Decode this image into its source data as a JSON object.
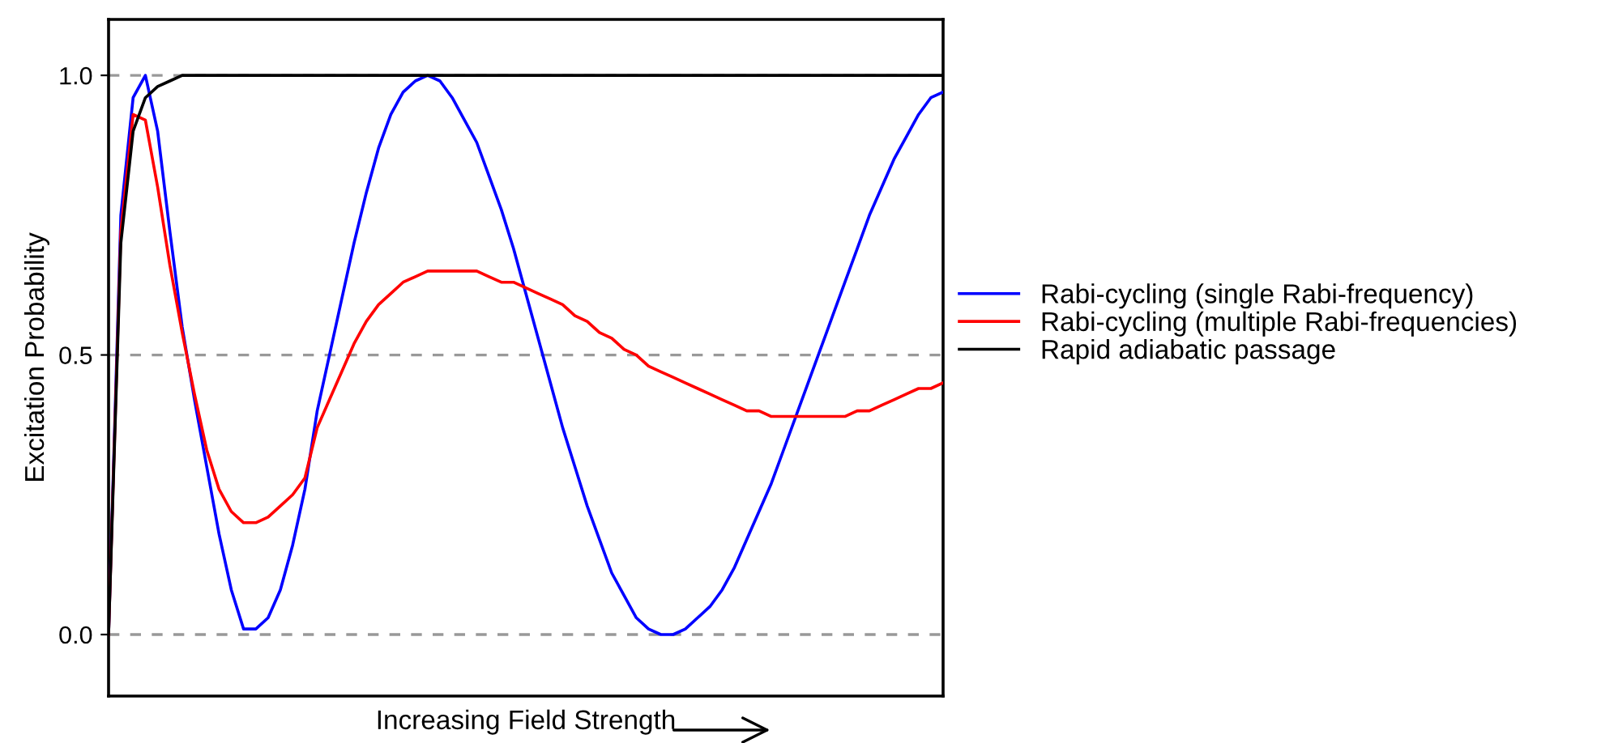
{
  "chart_data": {
    "type": "line",
    "xlabel": "Increasing Field Strength",
    "ylabel": "Excitation Probability",
    "categories": [
      null,
      null,
      null,
      null,
      null,
      null,
      null,
      null,
      null,
      null,
      null,
      null,
      null,
      null,
      null,
      null,
      null,
      null,
      null,
      null,
      null,
      null,
      null,
      null,
      null,
      null,
      null,
      null,
      null,
      null,
      null,
      null,
      null,
      null,
      null,
      null,
      null,
      null,
      null,
      null,
      null,
      null,
      null,
      null,
      null,
      null,
      null,
      null,
      null,
      null,
      null,
      null,
      null,
      null,
      null,
      null,
      null,
      null,
      null,
      null,
      null,
      null,
      null,
      null,
      null,
      null,
      null,
      null,
      null
    ],
    "series": [
      {
        "name": "Rabi-cycling (single Rabi-frequency)",
        "color": "#0000ff",
        "values": [
          0,
          0.75,
          0.96,
          1.0,
          0.9,
          0.72,
          0.55,
          0.42,
          0.3,
          0.18,
          0.08,
          0.01,
          0.01,
          0.03,
          0.08,
          0.16,
          0.26,
          0.4,
          0.5,
          0.6,
          0.7,
          0.79,
          0.87,
          0.93,
          0.97,
          0.99,
          1.0,
          0.99,
          0.96,
          0.92,
          0.88,
          0.82,
          0.76,
          0.69,
          0.61,
          0.53,
          0.45,
          0.37,
          0.3,
          0.23,
          0.17,
          0.11,
          0.07,
          0.03,
          0.01,
          0.0,
          0.0,
          0.01,
          0.03,
          0.05,
          0.08,
          0.12,
          0.17,
          0.22,
          0.27,
          0.33,
          0.39,
          0.45,
          0.51,
          0.57,
          0.63,
          0.69,
          0.75,
          0.8,
          0.85,
          0.89,
          0.93,
          0.96,
          0.97
        ]
      },
      {
        "name": "Rabi-cycling (multiple Rabi-frequencies)",
        "color": "#ff0000",
        "values": [
          0,
          0.72,
          0.93,
          0.92,
          0.8,
          0.66,
          0.54,
          0.43,
          0.33,
          0.26,
          0.22,
          0.2,
          0.2,
          0.21,
          0.23,
          0.25,
          0.28,
          0.37,
          0.42,
          0.47,
          0.52,
          0.56,
          0.59,
          0.61,
          0.63,
          0.64,
          0.65,
          0.65,
          0.65,
          0.65,
          0.65,
          0.64,
          0.63,
          0.63,
          0.62,
          0.61,
          0.6,
          0.59,
          0.57,
          0.56,
          0.54,
          0.53,
          0.51,
          0.5,
          0.48,
          0.47,
          0.46,
          0.45,
          0.44,
          0.43,
          0.42,
          0.41,
          0.4,
          0.4,
          0.39,
          0.39,
          0.39,
          0.39,
          0.39,
          0.39,
          0.39,
          0.4,
          0.4,
          0.41,
          0.42,
          0.43,
          0.44,
          0.44,
          0.45
        ]
      },
      {
        "name": "Rapid adiabatic passage",
        "color": "#000000",
        "values": [
          0,
          0.7,
          0.9,
          0.96,
          0.98,
          0.99,
          1.0,
          1.0,
          1.0,
          1.0,
          1.0,
          1.0,
          1.0,
          1.0,
          1.0,
          1.0,
          1.0,
          1.0,
          1.0,
          1.0,
          1.0,
          1.0,
          1.0,
          1.0,
          1.0,
          1.0,
          1.0,
          1.0,
          1.0,
          1.0,
          1.0,
          1.0,
          1.0,
          1.0,
          1.0,
          1.0,
          1.0,
          1.0,
          1.0,
          1.0,
          1.0,
          1.0,
          1.0,
          1.0,
          1.0,
          1.0,
          1.0,
          1.0,
          1.0,
          1.0,
          1.0,
          1.0,
          1.0,
          1.0,
          1.0,
          1.0,
          1.0,
          1.0,
          1.0,
          1.0,
          1.0,
          1.0,
          1.0,
          1.0,
          1.0,
          1.0,
          1.0,
          1.0,
          1.0
        ]
      }
    ],
    "ylim": [
      -0.11,
      1.1
    ],
    "yticks": [
      {
        "value": 0,
        "label": "0.0"
      },
      {
        "value": 0.5,
        "label": "0.5"
      },
      {
        "value": 1,
        "label": "1.0"
      }
    ],
    "grid": "y",
    "legend": "right",
    "tick_labels": "y",
    "marker": "none",
    "line_style": "solid"
  }
}
